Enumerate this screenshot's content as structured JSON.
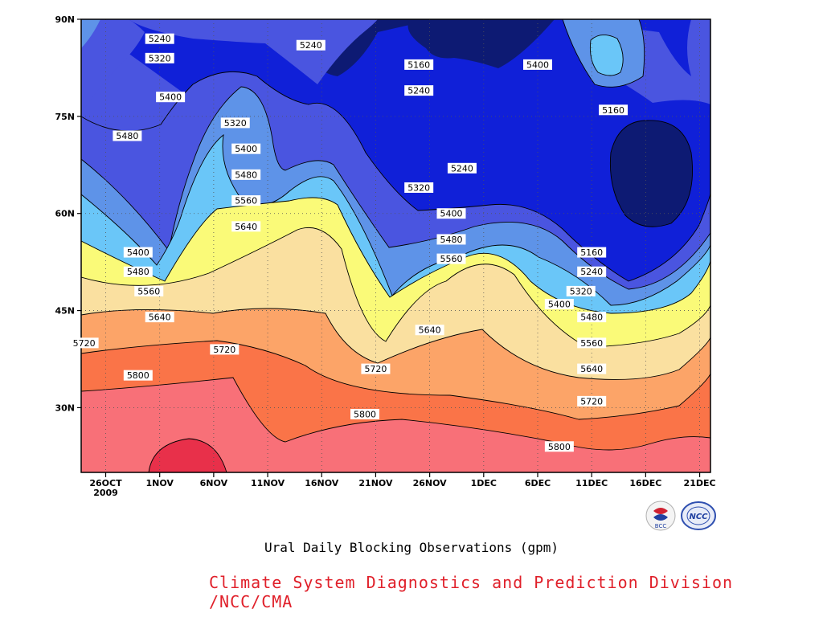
{
  "chart_data": {
    "type": "contour",
    "title": "",
    "subtitle": "Ural Daily Blocking Observations (gpm)",
    "xlabel": "",
    "ylabel": "",
    "x_ticks": [
      "26OCT\n2009",
      "1NOV",
      "6NOV",
      "11NOV",
      "16NOV",
      "21NOV",
      "26NOV",
      "1DEC",
      "6DEC",
      "11DEC",
      "16DEC",
      "21DEC"
    ],
    "y_ticks": [
      "30N",
      "45N",
      "60N",
      "75N",
      "90N"
    ],
    "xlim": [
      "2009-10-26",
      "2009-12-21"
    ],
    "ylim": [
      20,
      90
    ],
    "contour_levels": [
      5160,
      5240,
      5320,
      5400,
      5480,
      5560,
      5640,
      5720,
      5800
    ],
    "contour_labels": [
      {
        "value": 5240,
        "x": "2009-10-31",
        "lat": 87
      },
      {
        "value": 5320,
        "x": "2009-10-31",
        "lat": 84
      },
      {
        "value": 5240,
        "x": "2009-11-14",
        "lat": 86
      },
      {
        "value": 5160,
        "x": "2009-11-24",
        "lat": 83
      },
      {
        "value": 5240,
        "x": "2009-11-24",
        "lat": 79
      },
      {
        "value": 5400,
        "x": "2009-11-01",
        "lat": 78
      },
      {
        "value": 5320,
        "x": "2009-11-07",
        "lat": 74
      },
      {
        "value": 5480,
        "x": "2009-10-28",
        "lat": 72
      },
      {
        "value": 5400,
        "x": "2009-11-08",
        "lat": 70
      },
      {
        "value": 5480,
        "x": "2009-11-08",
        "lat": 66
      },
      {
        "value": 5560,
        "x": "2009-11-08",
        "lat": 62
      },
      {
        "value": 5640,
        "x": "2009-11-08",
        "lat": 58
      },
      {
        "value": 5400,
        "x": "2009-10-29",
        "lat": 54
      },
      {
        "value": 5480,
        "x": "2009-10-29",
        "lat": 51
      },
      {
        "value": 5560,
        "x": "2009-10-30",
        "lat": 48
      },
      {
        "value": 5640,
        "x": "2009-10-31",
        "lat": 44
      },
      {
        "value": 5720,
        "x": "2009-10-24",
        "lat": 40
      },
      {
        "value": 5720,
        "x": "2009-11-06",
        "lat": 39
      },
      {
        "value": 5800,
        "x": "2009-10-29",
        "lat": 35
      },
      {
        "value": 5240,
        "x": "2009-11-28",
        "lat": 67
      },
      {
        "value": 5320,
        "x": "2009-11-24",
        "lat": 64
      },
      {
        "value": 5400,
        "x": "2009-11-27",
        "lat": 60
      },
      {
        "value": 5480,
        "x": "2009-11-27",
        "lat": 56
      },
      {
        "value": 5560,
        "x": "2009-11-27",
        "lat": 53
      },
      {
        "value": 5640,
        "x": "2009-11-25",
        "lat": 42
      },
      {
        "value": 5720,
        "x": "2009-11-20",
        "lat": 36
      },
      {
        "value": 5800,
        "x": "2009-11-19",
        "lat": 29
      },
      {
        "value": 5400,
        "x": "2009-12-05",
        "lat": 83
      },
      {
        "value": 5160,
        "x": "2009-12-12",
        "lat": 76
      },
      {
        "value": 5160,
        "x": "2009-12-10",
        "lat": 54
      },
      {
        "value": 5240,
        "x": "2009-12-10",
        "lat": 51
      },
      {
        "value": 5320,
        "x": "2009-12-09",
        "lat": 48
      },
      {
        "value": 5400,
        "x": "2009-12-07",
        "lat": 46
      },
      {
        "value": 5480,
        "x": "2009-12-10",
        "lat": 44
      },
      {
        "value": 5560,
        "x": "2009-12-10",
        "lat": 40
      },
      {
        "value": 5640,
        "x": "2009-12-10",
        "lat": 36
      },
      {
        "value": 5720,
        "x": "2009-12-10",
        "lat": 31
      },
      {
        "value": 5800,
        "x": "2009-12-07",
        "lat": 24
      }
    ],
    "fill_colors": {
      "lt5160": "#0d1a73",
      "5160": "#1020d8",
      "5240": "#4a55e0",
      "5320": "#5e93e8",
      "5400": "#6ac6f8",
      "5480": "#fafa78",
      "5560": "#fae0a0",
      "5640": "#fca468",
      "5720": "#fa7448",
      "5800": "#f87078",
      "5880": "#e8304a"
    },
    "grid": true,
    "legend": "none"
  },
  "footer": {
    "credit": "Climate System Diagnostics and Prediction Division /NCC/CMA",
    "logo_left": "BCC",
    "logo_right": "NCC"
  }
}
